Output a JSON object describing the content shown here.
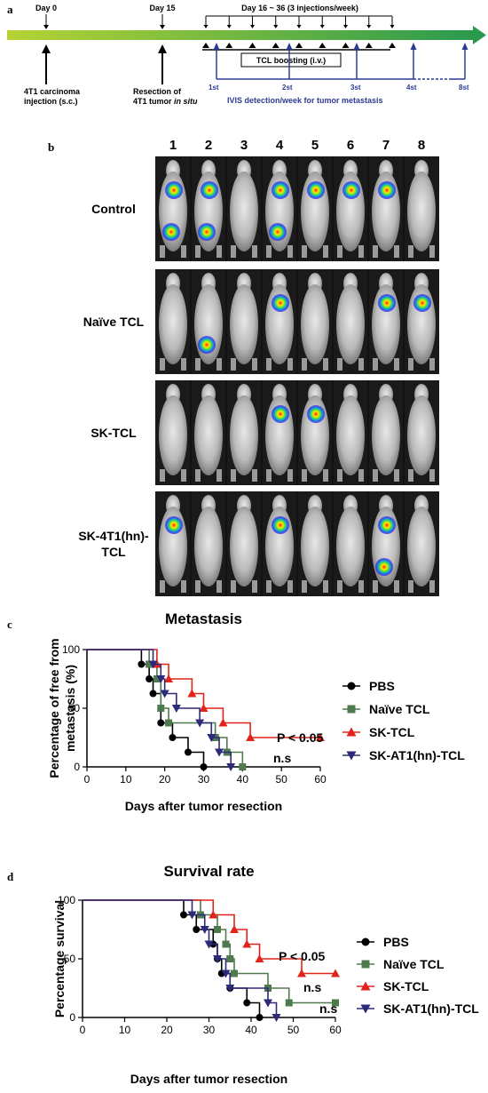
{
  "panel_a": {
    "letter": "a",
    "day0": "Day 0",
    "day15": "Day 15",
    "day16_36": "Day 16 ~ 36 (3 injections/week)",
    "injection": [
      "4T1 carcinoma",
      "injection (s.c.)"
    ],
    "resection": [
      "Resection of",
      "4T1 tumor ",
      "in situ"
    ],
    "tcl_boost": "TCL boosting (i.v.)",
    "ivis_weeks": [
      "1st",
      "2st",
      "3st",
      "4st",
      "8st"
    ],
    "ivis_label": "IVIS detection/week for tumor metastasis",
    "colors": {
      "bar_start": "#b5d334",
      "bar_end": "#2a9a4e",
      "ivis": "#2d3b93"
    }
  },
  "panel_b": {
    "letter": "b",
    "columns": [
      "1",
      "2",
      "3",
      "4",
      "5",
      "6",
      "7",
      "8"
    ],
    "rows": [
      {
        "label": [
          "Control"
        ],
        "signals": [
          [
            1,
            2
          ],
          [
            1,
            2
          ],
          [],
          [
            1,
            2
          ],
          [
            1
          ],
          [
            1
          ],
          [
            1
          ],
          []
        ]
      },
      {
        "label": [
          "Naïve TCL"
        ],
        "signals": [
          [],
          [
            2
          ],
          [],
          [
            1
          ],
          [],
          [],
          [
            1
          ],
          [
            1
          ]
        ]
      },
      {
        "label": [
          "SK-TCL"
        ],
        "signals": [
          [],
          [],
          [],
          [
            1
          ],
          [
            1
          ],
          [],
          [],
          []
        ]
      },
      {
        "label": [
          "SK-4T1(hn)-",
          "TCL"
        ],
        "signals": [
          [
            1
          ],
          [],
          [],
          [
            1
          ],
          [],
          [],
          [
            1,
            2
          ],
          []
        ]
      }
    ]
  },
  "chart_data": [
    {
      "type": "line",
      "panel_letter": "c",
      "title": "Metastasis",
      "xlabel": "Days after tumor resection",
      "ylabel": [
        "Percentage of free from",
        "metastasis (%)"
      ],
      "xlim": [
        0,
        60
      ],
      "ylim": [
        0,
        100
      ],
      "xticks": [
        "0",
        "10",
        "20",
        "30",
        "40",
        "50",
        "60"
      ],
      "yticks": [
        "0",
        "50",
        "100"
      ],
      "series": [
        {
          "name": "PBS",
          "color": "#000000",
          "marker": "circle",
          "steps": [
            [
              14,
              87.5
            ],
            [
              16,
              75
            ],
            [
              17,
              62.5
            ],
            [
              19,
              37.5
            ],
            [
              22,
              25
            ],
            [
              26,
              12.5
            ],
            [
              30,
              0
            ]
          ]
        },
        {
          "name": "Naïve TCL",
          "color": "#4e7a4e",
          "marker": "square",
          "steps": [
            [
              16,
              87.5
            ],
            [
              18,
              75
            ],
            [
              19,
              50
            ],
            [
              21,
              37.5
            ],
            [
              33,
              25
            ],
            [
              36,
              12.5
            ],
            [
              40,
              0
            ]
          ]
        },
        {
          "name": "SK-TCL",
          "color": "#e2231a",
          "marker": "triangle-up",
          "steps": [
            [
              18,
              87.5
            ],
            [
              21,
              75
            ],
            [
              27,
              62.5
            ],
            [
              30,
              50
            ],
            [
              35,
              37.5
            ],
            [
              42,
              25
            ]
          ],
          "end": 60
        },
        {
          "name": "SK-AT1(hn)-TCL",
          "color": "#2e2a7a",
          "marker": "triangle-down",
          "steps": [
            [
              17,
              87.5
            ],
            [
              19,
              75
            ],
            [
              20,
              62.5
            ],
            [
              23,
              50
            ],
            [
              29,
              37.5
            ],
            [
              32,
              25
            ],
            [
              34,
              12.5
            ],
            [
              37,
              0
            ]
          ]
        }
      ],
      "annotations": [
        "P < 0.05",
        "n.s"
      ]
    },
    {
      "type": "line",
      "panel_letter": "d",
      "title": "Survival rate",
      "xlabel": "Days after tumor resection",
      "ylabel": [
        "Percentage survival"
      ],
      "xlim": [
        0,
        60
      ],
      "ylim": [
        0,
        100
      ],
      "xticks": [
        "0",
        "10",
        "20",
        "30",
        "40",
        "50",
        "60"
      ],
      "yticks": [
        "0",
        "50",
        "100"
      ],
      "series": [
        {
          "name": "PBS",
          "color": "#000000",
          "marker": "circle",
          "steps": [
            [
              24,
              87.5
            ],
            [
              27,
              75
            ],
            [
              31,
              62.5
            ],
            [
              32,
              50
            ],
            [
              33,
              37.5
            ],
            [
              35,
              25
            ],
            [
              39,
              12.5
            ],
            [
              42,
              0
            ]
          ]
        },
        {
          "name": "Naïve TCL",
          "color": "#4e7a4e",
          "marker": "square",
          "steps": [
            [
              28,
              87.5
            ],
            [
              32,
              75
            ],
            [
              34,
              62.5
            ],
            [
              35,
              50
            ],
            [
              36,
              37.5
            ],
            [
              44,
              25
            ],
            [
              49,
              12.5
            ]
          ],
          "end": 60
        },
        {
          "name": "SK-TCL",
          "color": "#e2231a",
          "marker": "triangle-up",
          "steps": [
            [
              31,
              87.5
            ],
            [
              36,
              75
            ],
            [
              39,
              62.5
            ],
            [
              42,
              50
            ],
            [
              52,
              37.5
            ]
          ],
          "end": 60
        },
        {
          "name": "SK-AT1(hn)-TCL",
          "color": "#2e2a7a",
          "marker": "triangle-down",
          "steps": [
            [
              26,
              87.5
            ],
            [
              29,
              75
            ],
            [
              30,
              62.5
            ],
            [
              32,
              50
            ],
            [
              34,
              37.5
            ],
            [
              35,
              25
            ],
            [
              44,
              12.5
            ],
            [
              46,
              0
            ]
          ]
        }
      ],
      "annotations": [
        "P < 0.05",
        "n.s",
        "n.s"
      ]
    }
  ]
}
